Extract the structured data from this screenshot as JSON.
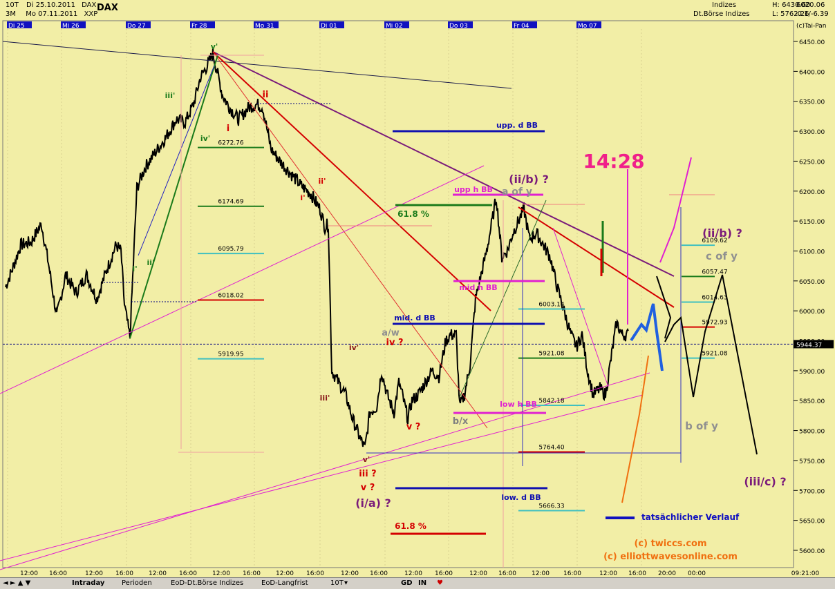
{
  "header": {
    "row1_left": "10T",
    "row1_date": "Di 25.10.2011",
    "row1_symbol": "DAX",
    "row2_left": "3M",
    "row2_date": "Mo 07.11.2011",
    "row2_exch": "XXP",
    "instrument": "DAX",
    "category": "Indizes",
    "source": "Dt.Börse Indizes",
    "high": "H: 6430.60",
    "low": "L: 5762.26",
    "last": "6020.06",
    "change": "-0.1/-6.39",
    "vendor": "(c)Tai-Pan"
  },
  "chart_data": {
    "type": "line",
    "x_day_labels": [
      "Di 25",
      "Mi 26",
      "Do 27",
      "Fr 28",
      "Mo 31",
      "Di 01",
      "Mi 02",
      "Do 03",
      "Fr 04",
      "Mo 07"
    ],
    "x_time_labels": [
      "12:00",
      "16:00",
      "12:00",
      "16:00",
      "12:00",
      "16:00",
      "12:00",
      "16:00",
      "12:00",
      "16:00",
      "12:00",
      "16:00",
      "12:00",
      "16:00",
      "12:00",
      "16:00",
      "12:00",
      "16:00",
      "12:00",
      "16:00",
      "20:00",
      "00:00",
      "09:21:00"
    ],
    "y_ticks": [
      "6450.00",
      "6400.00",
      "6350.00",
      "6300.00",
      "6250.00",
      "6200.00",
      "6150.00",
      "6100.00",
      "6050.00",
      "6000.00",
      "5950.00",
      "5900.00",
      "5850.00",
      "5800.00",
      "5750.00",
      "5700.00",
      "5650.00",
      "5600.00"
    ],
    "ylim": [
      5575,
      6475
    ],
    "current_price": "5944.37",
    "level_labels": [
      "6272.76",
      "6174.69",
      "6095.79",
      "6018.02",
      "5919.95",
      "6109.62",
      "6057.47",
      "6014.63",
      "5972.93",
      "5921.08",
      "6003.14",
      "5921.08",
      "5842.18",
      "5764.40",
      "5666.33"
    ],
    "wave_labels": {
      "v_prime_top": "v'",
      "iii_prime_left": "iii'",
      "iv_prime_left": "iv'",
      "ii_prime_left": "ii'",
      "i_prime_left": "i'",
      "ii_red": "ii",
      "i_red": "i",
      "ii_prime_red": "ii'",
      "i_prime_red": "i'",
      "iv_prime_low": "iv'",
      "iii_prime_low": "iii'",
      "v_prime_low": "v'",
      "iii_q": "iii ?",
      "v_q": "v ?",
      "ia": "(i/a) ?",
      "aw": "a/w",
      "iv_q": "iv ?",
      "v_q2": "v ?",
      "bx": "b/x",
      "iib1": "(ii/b) ?",
      "a_of_y": "a of y",
      "iib2": "(ii/b) ?",
      "c_of_y": "c of y",
      "b_of_y": "b of y",
      "iiic": "(iii/c) ?"
    },
    "annotations": {
      "upp_d_bb": "upp. d BB",
      "upp_h_bb": "upp h BB",
      "mid_h_bb": "mid h BB",
      "mid_d_bb": "mid. d BB",
      "low_h_bb": "low h BB",
      "low_d_bb": "low. d BB",
      "fib1": "61.8 %",
      "fib2": "61.8 %",
      "time_mark": "14:28",
      "legend": "tatsächlicher Verlauf",
      "copy1": "(c) twiccs.com",
      "copy2": "(c) elliottwavesonline.com"
    }
  },
  "toolbar": {
    "tab_intraday": "Intraday",
    "tab_perioden": "Perioden",
    "tab_eod_boerse": "EoD-Dt.Börse Indizes",
    "tab_eod_lang": "EoD-Langfrist",
    "period_select": "10T",
    "btn_gd": "GD",
    "btn_in": "IN"
  },
  "colors": {
    "background": "#f2eea6",
    "price": "#000000",
    "red": "#d40000",
    "green": "#1a7a1a",
    "blue": "#0000c0",
    "magenta": "#e020d0",
    "purple": "#7a1a7a",
    "orange": "#f07010"
  }
}
